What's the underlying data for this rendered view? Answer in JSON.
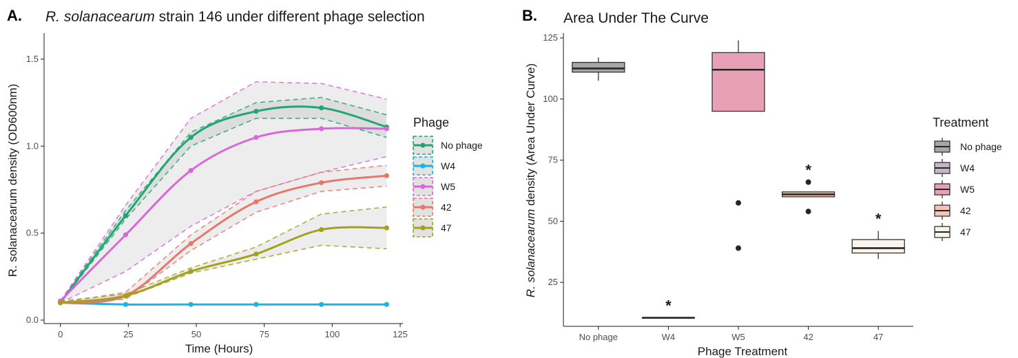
{
  "chart_data": [
    {
      "panel": "A.",
      "type": "line",
      "title_italic": "R. solanacearum",
      "title_rest": " strain 146 under different phage selection",
      "xlabel": "Time (Hours)",
      "ylabel": "R. solanacearum density (OD600nm)",
      "xlim": [
        -6,
        126
      ],
      "ylim": [
        -0.02,
        1.65
      ],
      "xticks": [
        0,
        25,
        50,
        75,
        100,
        125
      ],
      "yticks": [
        "0.0",
        "0.5",
        "1.0",
        "1.5"
      ],
      "grid": false,
      "legend": {
        "title": "Phage",
        "position": "right"
      },
      "x": [
        0,
        24,
        48,
        72,
        96,
        120
      ],
      "series": [
        {
          "name": "No phage",
          "color": "#21a573",
          "values": [
            0.1,
            0.6,
            1.05,
            1.2,
            1.22,
            1.11
          ],
          "lower": [
            0.1,
            0.58,
            1.0,
            1.16,
            1.16,
            1.05
          ],
          "upper": [
            0.11,
            0.63,
            1.08,
            1.25,
            1.28,
            1.18
          ]
        },
        {
          "name": "W4",
          "color": "#1ab2e8",
          "values": [
            0.1,
            0.09,
            0.09,
            0.09,
            0.09,
            0.09
          ],
          "lower": [
            0.1,
            0.09,
            0.09,
            0.09,
            0.09,
            0.09
          ],
          "upper": [
            0.1,
            0.09,
            0.09,
            0.09,
            0.09,
            0.09
          ]
        },
        {
          "name": "W5",
          "color": "#d966db",
          "values": [
            0.11,
            0.49,
            0.86,
            1.05,
            1.1,
            1.1
          ],
          "lower": [
            0.1,
            0.28,
            0.54,
            0.74,
            0.85,
            0.94
          ],
          "upper": [
            0.11,
            0.66,
            1.16,
            1.37,
            1.36,
            1.27
          ]
        },
        {
          "name": "42",
          "color": "#e8776b",
          "values": [
            0.1,
            0.14,
            0.44,
            0.68,
            0.79,
            0.83
          ],
          "lower": [
            0.1,
            0.12,
            0.4,
            0.62,
            0.74,
            0.77
          ],
          "upper": [
            0.1,
            0.16,
            0.49,
            0.74,
            0.85,
            0.89
          ]
        },
        {
          "name": "47",
          "color": "#a3a119",
          "values": [
            0.1,
            0.14,
            0.28,
            0.38,
            0.52,
            0.53
          ],
          "lower": [
            0.1,
            0.13,
            0.27,
            0.35,
            0.43,
            0.41
          ],
          "upper": [
            0.11,
            0.15,
            0.3,
            0.42,
            0.61,
            0.65
          ]
        }
      ]
    },
    {
      "panel": "B.",
      "type": "box",
      "title": "Area Under The Curve",
      "xlabel": "Phage Treatment",
      "ylabel_italic": "R. solanacearum",
      "ylabel_rest": " density (Area Under Curve)",
      "ylim": [
        7,
        127
      ],
      "yticks": [
        25,
        50,
        75,
        100,
        125
      ],
      "grid": false,
      "legend": {
        "title": "Treatment",
        "position": "right"
      },
      "categories": [
        "No phage",
        "W4",
        "W5",
        "42",
        "47"
      ],
      "boxes": [
        {
          "name": "No phage",
          "color": "#a6a6a8",
          "min": 107.5,
          "q1": 111,
          "median": 112.5,
          "q3": 115,
          "max": 117,
          "outliers": [],
          "significant": false
        },
        {
          "name": "W4",
          "color": "#c8b4c8",
          "min": 10.5,
          "q1": 10.5,
          "median": 10.5,
          "q3": 10.5,
          "max": 10.5,
          "outliers": [],
          "significant": true
        },
        {
          "name": "W5",
          "color": "#e8a0b6",
          "min": 95,
          "q1": 95,
          "median": 112,
          "q3": 119,
          "max": 124,
          "outliers": [
            57.5,
            39
          ],
          "significant": false
        },
        {
          "name": "42",
          "color": "#f4c4b4",
          "min": 60,
          "q1": 60,
          "median": 61,
          "q3": 62,
          "max": 62,
          "outliers": [
            66,
            54
          ],
          "significant": true
        },
        {
          "name": "47",
          "color": "#fbf4ec",
          "min": 34.5,
          "q1": 37,
          "median": 39,
          "q3": 42.5,
          "max": 46,
          "outliers": [],
          "significant": true
        }
      ],
      "significance_marker": "*"
    }
  ]
}
